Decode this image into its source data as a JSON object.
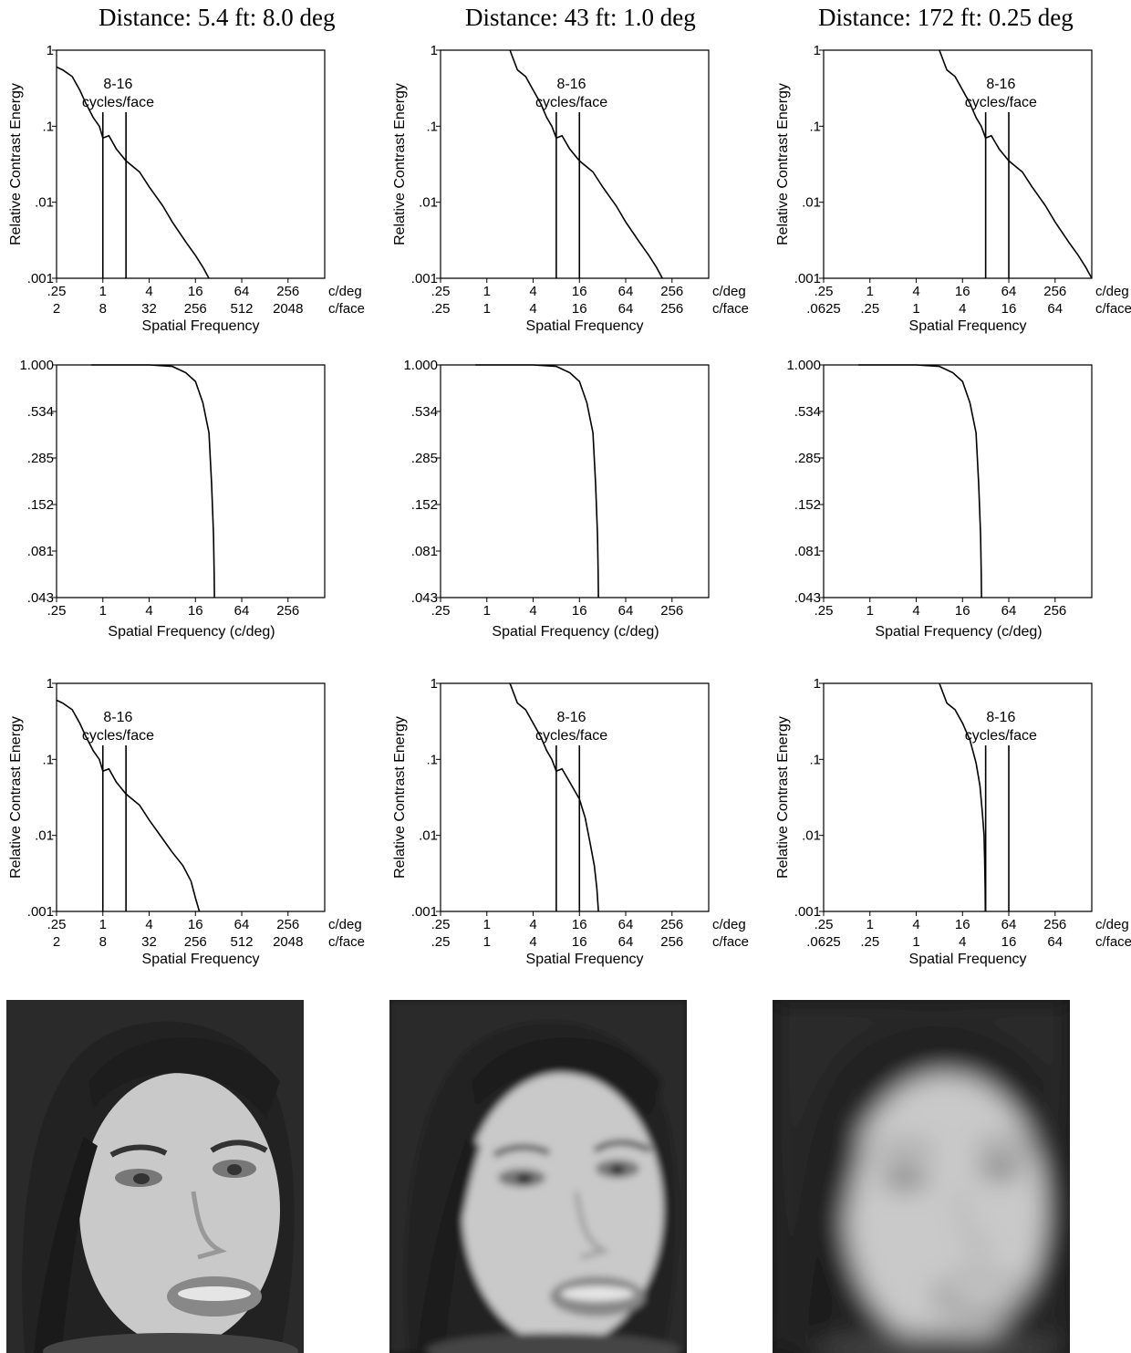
{
  "columns": [
    {
      "title": "Distance: 5.4 ft: 8.0 deg",
      "spectrum_chart": {
        "type": "line",
        "y_scale": "log",
        "ylabel": "Relative Contrast Energy",
        "xlabel": "Spatial Frequency",
        "x_ticks_cdeg": [
          ".25",
          "1",
          "4",
          "16",
          "64",
          "256"
        ],
        "x_ticks_cface": [
          "2",
          "8",
          "32",
          "256",
          "512",
          "2048"
        ],
        "x_unit_top": "c/deg",
        "x_unit_bottom": "c/face",
        "y_ticks": [
          "1",
          ".1",
          ".01",
          ".001"
        ],
        "band_label": [
          "8-16",
          "cycles/face"
        ],
        "band_cdeg": [
          1,
          2
        ],
        "series": [
          {
            "x": [
              0.25,
              0.3,
              0.4,
              0.5,
              0.6,
              0.75,
              0.9,
              1.0,
              1.2,
              1.5,
              2,
              3,
              4,
              6,
              8,
              12,
              16,
              20,
              24
            ],
            "y": [
              0.6,
              0.55,
              0.45,
              0.3,
              0.2,
              0.13,
              0.1,
              0.07,
              0.075,
              0.05,
              0.035,
              0.025,
              0.016,
              0.009,
              0.0055,
              0.003,
              0.002,
              0.0014,
              0.001
            ]
          }
        ]
      },
      "filter_chart": {
        "type": "line",
        "y_scale": "log",
        "xlabel": "Spatial Frequency (c/deg)",
        "x_ticks": [
          ".25",
          "1",
          "4",
          "16",
          "64",
          "256"
        ],
        "y_ticks": [
          "1.000",
          ".534",
          ".285",
          ".152",
          ".081",
          ".043"
        ],
        "series": [
          {
            "x": [
              0.25,
              4,
              8,
              12,
              16,
              20,
              24,
              26,
              27.5,
              28,
              28.3
            ],
            "y": [
              1.0,
              1.0,
              0.98,
              0.9,
              0.8,
              0.6,
              0.4,
              0.2,
              0.1,
              0.06,
              0.043
            ]
          }
        ]
      },
      "filtered_chart": {
        "type": "line",
        "y_scale": "log",
        "ylabel": "Relative Contrast Energy",
        "xlabel": "Spatial Frequency",
        "x_ticks_cdeg": [
          ".25",
          "1",
          "4",
          "16",
          "64",
          "256"
        ],
        "x_ticks_cface": [
          "2",
          "8",
          "32",
          "256",
          "512",
          "2048"
        ],
        "x_unit_top": "c/deg",
        "x_unit_bottom": "c/face",
        "y_ticks": [
          "1",
          ".1",
          ".01",
          ".001"
        ],
        "band_label": [
          "8-16",
          "cycles/face"
        ],
        "band_cdeg": [
          1,
          2
        ],
        "series": [
          {
            "x": [
              0.25,
              0.3,
              0.4,
              0.5,
              0.6,
              0.75,
              0.9,
              1.0,
              1.2,
              1.5,
              2,
              3,
              4,
              6,
              8,
              11,
              14,
              16,
              18
            ],
            "y": [
              0.6,
              0.55,
              0.45,
              0.3,
              0.2,
              0.13,
              0.1,
              0.07,
              0.075,
              0.05,
              0.035,
              0.025,
              0.016,
              0.009,
              0.006,
              0.004,
              0.0025,
              0.0015,
              0.001
            ]
          }
        ]
      },
      "photo_blur": 0
    },
    {
      "title": "Distance: 43 ft: 1.0 deg",
      "spectrum_chart": {
        "type": "line",
        "y_scale": "log",
        "ylabel": "Relative Contrast Energy",
        "xlabel": "Spatial Frequency",
        "x_ticks_cdeg": [
          ".25",
          "1",
          "4",
          "16",
          "64",
          "256"
        ],
        "x_ticks_cface": [
          ".25",
          "1",
          "4",
          "16",
          "64",
          "256"
        ],
        "x_unit_top": "c/deg",
        "x_unit_bottom": "c/face",
        "y_ticks": [
          "1",
          ".1",
          ".01",
          ".001"
        ],
        "band_label": [
          "8-16",
          "cycles/face"
        ],
        "band_cdeg": [
          8,
          16
        ],
        "series": [
          {
            "x": [
              2,
              2.5,
              3.2,
              4,
              5,
              6,
              7,
              8,
              9.5,
              12,
              16,
              24,
              32,
              48,
              64,
              96,
              128,
              160,
              192
            ],
            "y": [
              1.0,
              0.55,
              0.45,
              0.3,
              0.2,
              0.13,
              0.1,
              0.07,
              0.075,
              0.05,
              0.035,
              0.025,
              0.016,
              0.009,
              0.0055,
              0.003,
              0.002,
              0.0014,
              0.001
            ]
          }
        ]
      },
      "filter_chart": {
        "type": "line",
        "y_scale": "log",
        "xlabel": "Spatial Frequency (c/deg)",
        "x_ticks": [
          ".25",
          "1",
          "4",
          "16",
          "64",
          "256"
        ],
        "y_ticks": [
          "1.000",
          ".534",
          ".285",
          ".152",
          ".081",
          ".043"
        ],
        "series": [
          {
            "x": [
              0.25,
              4,
              8,
              12,
              16,
              20,
              24,
              26,
              27.5,
              28,
              28.3
            ],
            "y": [
              1.0,
              1.0,
              0.98,
              0.9,
              0.8,
              0.6,
              0.4,
              0.2,
              0.1,
              0.06,
              0.043
            ]
          }
        ]
      },
      "filtered_chart": {
        "type": "line",
        "y_scale": "log",
        "ylabel": "Relative Contrast Energy",
        "xlabel": "Spatial Frequency",
        "x_ticks_cdeg": [
          ".25",
          "1",
          "4",
          "16",
          "64",
          "256"
        ],
        "x_ticks_cface": [
          ".25",
          "1",
          "4",
          "16",
          "64",
          "256"
        ],
        "x_unit_top": "c/deg",
        "x_unit_bottom": "c/face",
        "y_ticks": [
          "1",
          ".1",
          ".01",
          ".001"
        ],
        "band_label": [
          "8-16",
          "cycles/face"
        ],
        "band_cdeg": [
          8,
          16
        ],
        "series": [
          {
            "x": [
              2,
              2.5,
              3.2,
              4,
              5,
              6,
              7,
              8,
              9.5,
              12,
              16,
              19,
              22,
              25,
              27,
              28.3
            ],
            "y": [
              1.0,
              0.55,
              0.45,
              0.3,
              0.2,
              0.13,
              0.1,
              0.07,
              0.075,
              0.05,
              0.03,
              0.017,
              0.008,
              0.004,
              0.002,
              0.001
            ]
          }
        ]
      },
      "photo_blur": 4
    },
    {
      "title": "Distance: 172 ft: 0.25 deg",
      "spectrum_chart": {
        "type": "line",
        "y_scale": "log",
        "ylabel": "Relative Contrast Energy",
        "xlabel": "Spatial Frequency",
        "x_ticks_cdeg": [
          ".25",
          "1",
          "4",
          "16",
          "64",
          "256"
        ],
        "x_ticks_cface": [
          ".0625",
          ".25",
          "1",
          "4",
          "16",
          "64"
        ],
        "x_unit_top": "c/deg",
        "x_unit_bottom": "c/face",
        "y_ticks": [
          "1",
          ".1",
          ".01",
          ".001"
        ],
        "band_label": [
          "8-16",
          "cycles/face"
        ],
        "band_cdeg": [
          32,
          64
        ],
        "series": [
          {
            "x": [
              8,
              10,
              12.8,
              16,
              20,
              24,
              28,
              32,
              38,
              48,
              64,
              96,
              128,
              192,
              256,
              384,
              512,
              640,
              768
            ],
            "y": [
              1.0,
              0.55,
              0.45,
              0.3,
              0.2,
              0.13,
              0.1,
              0.07,
              0.075,
              0.05,
              0.035,
              0.025,
              0.016,
              0.009,
              0.0055,
              0.003,
              0.002,
              0.0014,
              0.001
            ]
          }
        ]
      },
      "filter_chart": {
        "type": "line",
        "y_scale": "log",
        "xlabel": "Spatial Frequency (c/deg)",
        "x_ticks": [
          ".25",
          "1",
          "4",
          "16",
          "64",
          "256"
        ],
        "y_ticks": [
          "1.000",
          ".534",
          ".285",
          ".152",
          ".081",
          ".043"
        ],
        "series": [
          {
            "x": [
              0.25,
              4,
              8,
              12,
              16,
              20,
              24,
              26,
              27.5,
              28,
              28.3
            ],
            "y": [
              1.0,
              1.0,
              0.98,
              0.9,
              0.8,
              0.6,
              0.4,
              0.2,
              0.1,
              0.06,
              0.043
            ]
          }
        ]
      },
      "filtered_chart": {
        "type": "line",
        "y_scale": "log",
        "ylabel": "Relative Contrast Energy",
        "xlabel": "Spatial Frequency",
        "x_ticks_cdeg": [
          ".25",
          "1",
          "4",
          "16",
          "64",
          "256"
        ],
        "x_ticks_cface": [
          ".0625",
          ".25",
          "1",
          "4",
          "16",
          "64"
        ],
        "x_unit_top": "c/deg",
        "x_unit_bottom": "c/face",
        "y_ticks": [
          "1",
          ".1",
          ".01",
          ".001"
        ],
        "band_label": [
          "8-16",
          "cycles/face"
        ],
        "band_cdeg": [
          32,
          64
        ],
        "series": [
          {
            "x": [
              8,
              10,
              12.8,
              16,
              20,
              24,
              27,
              29,
              30.5,
              31,
              31.5,
              31.7
            ],
            "y": [
              1.0,
              0.55,
              0.45,
              0.3,
              0.18,
              0.09,
              0.045,
              0.02,
              0.01,
              0.005,
              0.002,
              0.001
            ]
          }
        ]
      },
      "photo_blur": 14
    }
  ],
  "colors": {
    "ink": "#000000",
    "photo_dark": "#151515",
    "photo_skin": "#c9c9c9"
  }
}
